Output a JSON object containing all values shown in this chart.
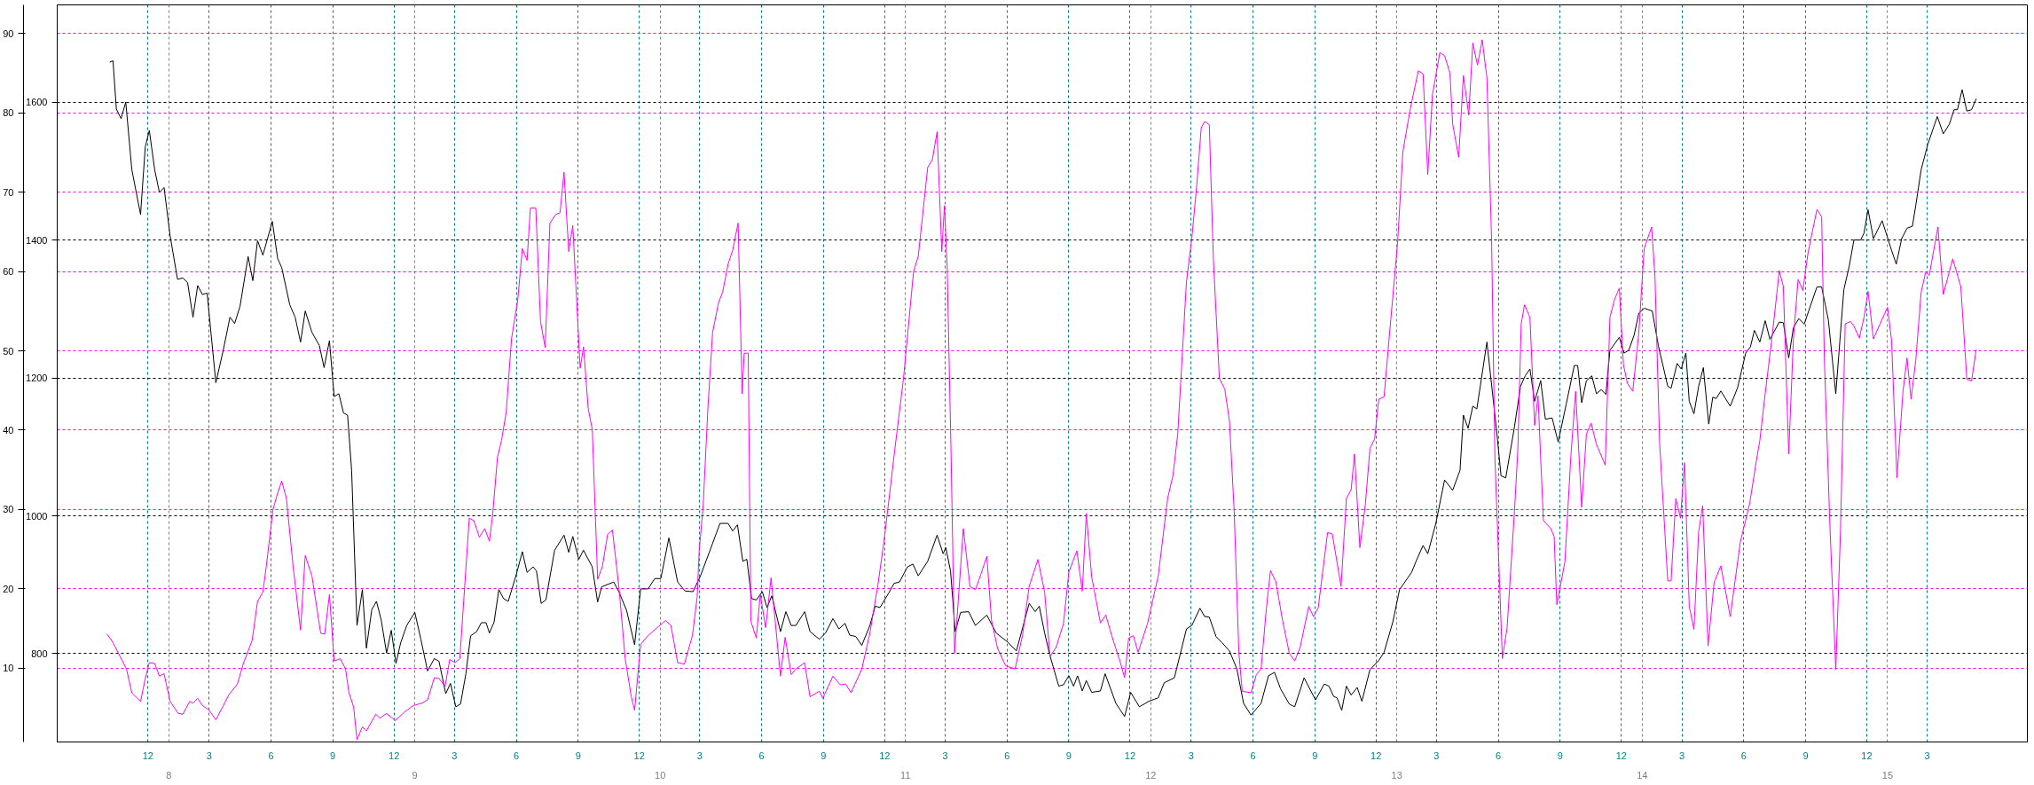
{
  "chart_data": {
    "type": "line",
    "xlim": [
      "2007-07-19",
      "2015-07-28"
    ],
    "xticks": [
      {
        "value": "2007-12-01",
        "label": "12"
      },
      {
        "value": "2008-03-01",
        "label": "3"
      },
      {
        "value": "2008-06-01",
        "label": "6"
      },
      {
        "value": "2008-09-01",
        "label": "9"
      },
      {
        "value": "2008-12-01",
        "label": "12"
      },
      {
        "value": "2009-03-01",
        "label": "3"
      },
      {
        "value": "2009-06-01",
        "label": "6"
      },
      {
        "value": "2009-09-01",
        "label": "9"
      },
      {
        "value": "2009-12-01",
        "label": "12"
      },
      {
        "value": "2010-03-01",
        "label": "3"
      },
      {
        "value": "2010-06-01",
        "label": "6"
      },
      {
        "value": "2010-09-01",
        "label": "9"
      },
      {
        "value": "2010-12-01",
        "label": "12"
      },
      {
        "value": "2011-03-01",
        "label": "3"
      },
      {
        "value": "2011-06-01",
        "label": "6"
      },
      {
        "value": "2011-09-01",
        "label": "9"
      },
      {
        "value": "2011-12-01",
        "label": "12"
      },
      {
        "value": "2012-03-01",
        "label": "3"
      },
      {
        "value": "2012-06-01",
        "label": "6"
      },
      {
        "value": "2012-09-01",
        "label": "9"
      },
      {
        "value": "2012-12-01",
        "label": "12"
      },
      {
        "value": "2013-03-01",
        "label": "3"
      },
      {
        "value": "2013-06-01",
        "label": "6"
      },
      {
        "value": "2013-09-01",
        "label": "9"
      },
      {
        "value": "2013-12-01",
        "label": "12"
      },
      {
        "value": "2014-03-01",
        "label": "3"
      },
      {
        "value": "2014-06-01",
        "label": "6"
      },
      {
        "value": "2014-09-01",
        "label": "9"
      },
      {
        "value": "2014-12-01",
        "label": "12"
      },
      {
        "value": "2015-03-01",
        "label": "3"
      }
    ],
    "x2lim": [
      "2007-07-19",
      "2015-07-28"
    ],
    "x2ticks": [
      {
        "value": "2008",
        "label": "8"
      },
      {
        "value": "2009",
        "label": "9"
      },
      {
        "value": "2010",
        "label": "10"
      },
      {
        "value": "2011",
        "label": "11"
      },
      {
        "value": "2012",
        "label": "12"
      },
      {
        "value": "2013",
        "label": "13"
      },
      {
        "value": "2014",
        "label": "14"
      },
      {
        "value": "2015",
        "label": "15"
      }
    ],
    "ylim": [
      672,
      1741
    ],
    "yticks": [
      800,
      1000,
      1200,
      1400,
      1600
    ],
    "y2lim": [
      0.7,
      93.6
    ],
    "y2ticks": [
      10,
      20,
      30,
      40,
      50,
      60,
      70,
      80,
      90
    ],
    "grid": true,
    "series": [
      {
        "color": "#000000",
        "x": [
          "2007-10-05",
          "2007-10-10",
          "2007-10-15",
          "2007-10-22",
          "2007-10-29",
          "2007-11-07",
          "2007-11-20",
          "2007-11-27",
          "2007-12-03",
          "2007-12-11",
          "2007-12-18",
          "2007-12-25",
          "2008-01-03",
          "2008-01-14",
          "2008-01-22",
          "2008-01-29",
          "2008-02-06",
          "2008-02-13",
          "2008-02-20",
          "2008-02-27",
          "2008-03-11",
          "2008-03-22",
          "2008-04-01",
          "2008-04-08",
          "2008-04-16",
          "2008-04-28",
          "2008-05-05",
          "2008-05-12",
          "2008-05-20",
          "2008-06-03",
          "2008-06-11",
          "2008-06-17",
          "2008-06-29",
          "2008-07-07",
          "2008-07-15",
          "2008-07-22",
          "2008-08-01",
          "2008-08-12",
          "2008-08-19",
          "2008-08-27",
          "2008-09-03",
          "2008-09-10",
          "2008-09-17",
          "2008-09-23",
          "2008-09-29",
          "2008-10-07",
          "2008-10-15",
          "2008-10-21",
          "2008-10-29",
          "2008-11-05",
          "2008-11-12",
          "2008-11-20",
          "2008-11-27",
          "2008-12-04",
          "2008-12-11",
          "2008-12-20",
          "2009-01-01",
          "2009-01-10",
          "2009-01-20",
          "2009-01-30",
          "2009-02-06",
          "2009-02-16",
          "2009-02-23",
          "2009-03-03",
          "2009-03-10",
          "2009-03-18",
          "2009-03-25",
          "2009-04-03",
          "2009-04-10",
          "2009-04-17",
          "2009-04-22",
          "2009-04-29",
          "2009-05-06",
          "2009-05-13",
          "2009-05-20",
          "2009-06-01",
          "2009-06-10",
          "2009-06-17",
          "2009-06-26",
          "2009-07-01",
          "2009-07-08",
          "2009-07-15",
          "2009-07-28",
          "2009-08-11",
          "2009-08-18",
          "2009-08-24",
          "2009-09-02",
          "2009-09-09",
          "2009-09-22",
          "2009-09-30",
          "2009-10-06",
          "2009-10-24",
          "2009-11-01",
          "2009-11-12",
          "2009-11-24",
          "2009-12-03",
          "2009-12-14",
          "2009-12-24",
          "2010-01-02",
          "2010-01-14",
          "2010-01-27",
          "2010-02-07",
          "2010-02-19",
          "2010-03-02",
          "2010-03-17",
          "2010-03-31",
          "2010-04-12",
          "2010-04-19",
          "2010-04-26",
          "2010-05-04",
          "2010-05-10",
          "2010-05-17",
          "2010-05-24",
          "2010-06-02",
          "2010-06-09",
          "2010-06-16",
          "2010-06-29",
          "2010-07-07",
          "2010-07-15",
          "2010-07-22",
          "2010-08-04",
          "2010-08-12",
          "2010-08-26",
          "2010-09-04",
          "2010-09-15",
          "2010-09-24",
          "2010-10-03",
          "2010-10-10",
          "2010-10-19",
          "2010-10-28",
          "2010-11-09",
          "2010-11-17",
          "2010-11-24",
          "2010-12-07",
          "2010-12-15",
          "2010-12-23",
          "2011-01-04",
          "2011-01-12",
          "2011-01-20",
          "2011-02-03",
          "2011-02-17",
          "2011-02-26",
          "2011-03-02",
          "2011-03-09",
          "2011-03-16",
          "2011-03-24",
          "2011-04-05",
          "2011-04-15",
          "2011-05-02",
          "2011-05-16",
          "2011-06-02",
          "2011-06-15",
          "2011-07-04",
          "2011-07-13",
          "2011-07-19",
          "2011-07-27",
          "2011-08-04",
          "2011-08-17",
          "2011-08-24",
          "2011-09-01",
          "2011-09-08",
          "2011-09-14",
          "2011-09-21",
          "2011-09-27",
          "2011-10-05",
          "2011-10-18",
          "2011-10-25",
          "2011-11-10",
          "2011-11-23",
          "2011-12-02",
          "2011-12-15",
          "2011-12-29",
          "2012-01-12",
          "2012-01-21",
          "2012-02-05",
          "2012-02-23",
          "2012-03-02",
          "2012-03-14",
          "2012-03-21",
          "2012-03-28",
          "2012-04-07",
          "2012-04-16",
          "2012-04-27",
          "2012-05-08",
          "2012-05-18",
          "2012-05-29",
          "2012-06-13",
          "2012-06-24",
          "2012-07-03",
          "2012-07-12",
          "2012-07-25",
          "2012-08-02",
          "2012-08-16",
          "2012-09-02",
          "2012-09-15",
          "2012-09-22",
          "2012-09-29",
          "2012-10-04",
          "2012-10-11",
          "2012-10-18",
          "2012-10-25",
          "2012-11-03",
          "2012-11-10",
          "2012-11-22",
          "2012-12-05",
          "2012-12-13",
          "2012-12-26",
          "2013-01-05",
          "2013-01-23",
          "2013-01-30",
          "2013-02-09",
          "2013-02-16",
          "2013-02-28",
          "2013-03-13",
          "2013-03-25",
          "2013-04-05",
          "2013-04-10",
          "2013-04-17",
          "2013-04-24",
          "2013-04-30",
          "2013-05-15",
          "2013-05-30",
          "2013-06-05",
          "2013-06-12",
          "2013-06-25",
          "2013-07-04",
          "2013-07-11",
          "2013-07-18",
          "2013-07-25",
          "2013-08-03",
          "2013-08-10",
          "2013-08-20",
          "2013-08-29",
          "2013-09-10",
          "2013-09-22",
          "2013-09-27",
          "2013-10-03",
          "2013-10-10",
          "2013-10-18",
          "2013-10-25",
          "2013-11-01",
          "2013-11-08",
          "2013-11-14",
          "2013-11-28",
          "2013-12-05",
          "2013-12-12",
          "2013-12-20",
          "2013-12-27",
          "2014-01-04",
          "2014-01-16",
          "2014-01-25",
          "2014-02-08",
          "2014-02-13",
          "2014-02-22",
          "2014-02-28",
          "2014-03-07",
          "2014-03-12",
          "2014-03-19",
          "2014-03-26",
          "2014-04-02",
          "2014-04-10",
          "2014-04-16",
          "2014-04-21",
          "2014-04-28",
          "2014-05-12",
          "2014-05-23",
          "2014-06-04",
          "2014-06-11",
          "2014-06-17",
          "2014-06-25",
          "2014-07-03",
          "2014-07-10",
          "2014-07-24",
          "2014-07-30",
          "2014-08-07",
          "2014-08-14",
          "2014-08-22",
          "2014-08-30",
          "2014-09-18",
          "2014-09-25",
          "2014-10-05",
          "2014-10-16",
          "2014-10-28",
          "2014-11-05",
          "2014-11-12",
          "2014-11-22",
          "2014-11-27",
          "2014-12-03",
          "2014-12-11",
          "2014-12-24",
          "2015-01-07",
          "2015-01-14",
          "2015-01-22",
          "2015-01-30",
          "2015-02-07",
          "2015-02-12",
          "2015-02-20",
          "2015-03-02",
          "2015-03-16",
          "2015-03-25",
          "2015-04-03",
          "2015-04-10",
          "2015-04-15",
          "2015-04-22",
          "2015-04-29",
          "2015-05-06",
          "2015-05-13"
        ],
        "values": [
          1658,
          1660,
          1590,
          1576,
          1600,
          1502,
          1437,
          1535,
          1559,
          1502,
          1469,
          1476,
          1406,
          1343,
          1345,
          1338,
          1288,
          1334,
          1321,
          1323,
          1193,
          1240,
          1288,
          1279,
          1304,
          1376,
          1341,
          1399,
          1378,
          1427,
          1373,
          1360,
          1306,
          1288,
          1252,
          1297,
          1266,
          1247,
          1215,
          1254,
          1173,
          1177,
          1149,
          1146,
          1066,
          841,
          893,
          808,
          864,
          876,
          849,
          801,
          834,
          786,
          816,
          841,
          860,
          821,
          775,
          793,
          789,
          742,
          757,
          723,
          727,
          771,
          826,
          832,
          845,
          845,
          830,
          846,
          893,
          880,
          876,
          915,
          948,
          918,
          926,
          920,
          873,
          878,
          950,
          972,
          947,
          970,
          937,
          950,
          926,
          875,
          897,
          904,
          889,
          863,
          813,
          894,
          894,
          909,
          909,
          968,
          904,
          891,
          890,
          913,
          952,
          989,
          989,
          978,
          987,
          934,
          937,
          880,
          878,
          890,
          867,
          884,
          832,
          861,
          841,
          841,
          861,
          832,
          821,
          830,
          851,
          836,
          844,
          827,
          825,
          812,
          841,
          869,
          867,
          888,
          902,
          904,
          926,
          930,
          913,
          934,
          972,
          945,
          954,
          920,
          832,
          860,
          861,
          841,
          856,
          830,
          817,
          804,
          873,
          861,
          869,
          830,
          797,
          753,
          755,
          768,
          753,
          768,
          746,
          761,
          744,
          746,
          771,
          728,
          709,
          744,
          723,
          731,
          736,
          758,
          765,
          836,
          841,
          866,
          854,
          853,
          825,
          816,
          804,
          778,
          728,
          711,
          728,
          768,
          773,
          749,
          727,
          723,
          765,
          733,
          756,
          753,
          738,
          736,
          718,
          753,
          740,
          751,
          731,
          777,
          790,
          802,
          846,
          893,
          918,
          935,
          957,
          945,
          989,
          1052,
          1037,
          1066,
          1146,
          1127,
          1159,
          1155,
          1252,
          1118,
          1058,
          1055,
          1129,
          1188,
          1203,
          1213,
          1166,
          1196,
          1140,
          1142,
          1107,
          1162,
          1218,
          1218,
          1164,
          1196,
          1203,
          1177,
          1183,
          1176,
          1240,
          1259,
          1236,
          1240,
          1262,
          1294,
          1301,
          1297,
          1247,
          1188,
          1185,
          1221,
          1213,
          1236,
          1166,
          1148,
          1188,
          1215,
          1133,
          1172,
          1170,
          1181,
          1159,
          1186,
          1236,
          1245,
          1269,
          1252,
          1283,
          1256,
          1281,
          1280,
          1229,
          1273,
          1286,
          1278,
          1332,
          1332,
          1284,
          1177,
          1328,
          1362,
          1400,
          1400,
          1410,
          1444,
          1402,
          1428,
          1385,
          1365,
          1402,
          1417,
          1420,
          1450,
          1502,
          1539,
          1579,
          1554,
          1568,
          1589,
          1589,
          1618,
          1587,
          1589,
          1605
        ]
      },
      {
        "color": "#ff00ff",
        "axis": "y2",
        "x": [
          "2007-10-01",
          "2007-10-08",
          "2007-10-18",
          "2007-10-30",
          "2007-11-07",
          "2007-11-20",
          "2007-11-27",
          "2007-12-03",
          "2007-12-11",
          "2007-12-18",
          "2007-12-25",
          "2008-01-03",
          "2008-01-15",
          "2008-01-22",
          "2008-02-01",
          "2008-02-06",
          "2008-02-13",
          "2008-02-20",
          "2008-03-01",
          "2008-03-11",
          "2008-03-21",
          "2008-03-30",
          "2008-04-12",
          "2008-04-21",
          "2008-05-04",
          "2008-05-12",
          "2008-05-20",
          "2008-05-25",
          "2008-06-04",
          "2008-06-10",
          "2008-06-17",
          "2008-06-24",
          "2008-07-04",
          "2008-07-15",
          "2008-07-22",
          "2008-08-01",
          "2008-08-14",
          "2008-08-20",
          "2008-08-27",
          "2008-09-03",
          "2008-09-12",
          "2008-09-20",
          "2008-09-25",
          "2008-10-02",
          "2008-10-07",
          "2008-10-15",
          "2008-10-21",
          "2008-11-04",
          "2008-11-10",
          "2008-11-20",
          "2008-12-03",
          "2008-12-17",
          "2008-12-30",
          "2009-01-12",
          "2009-01-20",
          "2009-01-30",
          "2009-02-06",
          "2009-02-15",
          "2009-02-22",
          "2009-03-02",
          "2009-03-09",
          "2009-03-23",
          "2009-03-30",
          "2009-04-07",
          "2009-04-15",
          "2009-04-22",
          "2009-04-27",
          "2009-05-04",
          "2009-05-10",
          "2009-05-17",
          "2009-05-25",
          "2009-06-03",
          "2009-06-10",
          "2009-06-17",
          "2009-06-22",
          "2009-06-30",
          "2009-07-07",
          "2009-07-14",
          "2009-07-21",
          "2009-07-30",
          "2009-08-05",
          "2009-08-11",
          "2009-08-18",
          "2009-08-24",
          "2009-09-04",
          "2009-09-09",
          "2009-09-16",
          "2009-09-22",
          "2009-09-30",
          "2009-10-07",
          "2009-10-15",
          "2009-10-22",
          "2009-11-01",
          "2009-11-10",
          "2009-11-19",
          "2009-11-24",
          "2009-12-03",
          "2009-12-14",
          "2009-12-26",
          "2010-01-09",
          "2010-01-17",
          "2010-01-27",
          "2010-02-06",
          "2010-02-18",
          "2010-02-25",
          "2010-02-28",
          "2010-03-06",
          "2010-03-13",
          "2010-03-20",
          "2010-03-29",
          "2010-04-04",
          "2010-04-12",
          "2010-04-19",
          "2010-04-27",
          "2010-05-03",
          "2010-05-06",
          "2010-05-12",
          "2010-05-16",
          "2010-05-24",
          "2010-05-30",
          "2010-06-07",
          "2010-06-15",
          "2010-06-29",
          "2010-07-06",
          "2010-07-15",
          "2010-07-22",
          "2010-08-04",
          "2010-08-12",
          "2010-08-26",
          "2010-08-31",
          "2010-09-15",
          "2010-09-26",
          "2010-10-04",
          "2010-10-12",
          "2010-10-28",
          "2010-11-09",
          "2010-11-21",
          "2010-11-30",
          "2010-12-09",
          "2010-12-16",
          "2010-12-29",
          "2011-01-13",
          "2011-01-20",
          "2011-02-03",
          "2011-02-10",
          "2011-02-17",
          "2011-02-24",
          "2011-02-28",
          "2011-03-04",
          "2011-03-10",
          "2011-03-15",
          "2011-03-28",
          "2011-04-07",
          "2011-04-15",
          "2011-04-23",
          "2011-05-02",
          "2011-05-09",
          "2011-05-18",
          "2011-05-30",
          "2011-06-13",
          "2011-06-24",
          "2011-07-04",
          "2011-07-17",
          "2011-07-27",
          "2011-08-04",
          "2011-08-13",
          "2011-08-24",
          "2011-09-01",
          "2011-09-13",
          "2011-09-21",
          "2011-09-27",
          "2011-10-05",
          "2011-10-18",
          "2011-10-26",
          "2011-11-06",
          "2011-11-16",
          "2011-11-23",
          "2011-11-29",
          "2011-12-06",
          "2011-12-13",
          "2011-12-27",
          "2012-01-12",
          "2012-01-26",
          "2012-02-03",
          "2012-02-10",
          "2012-02-23",
          "2012-03-02",
          "2012-03-09",
          "2012-03-16",
          "2012-03-21",
          "2012-03-28",
          "2012-04-03",
          "2012-04-12",
          "2012-04-20",
          "2012-04-27",
          "2012-05-04",
          "2012-05-11",
          "2012-05-16",
          "2012-05-29",
          "2012-06-06",
          "2012-06-13",
          "2012-06-21",
          "2012-06-27",
          "2012-07-05",
          "2012-07-15",
          "2012-07-25",
          "2012-08-02",
          "2012-08-10",
          "2012-08-23",
          "2012-08-30",
          "2012-09-06",
          "2012-09-20",
          "2012-09-27",
          "2012-10-10",
          "2012-10-18",
          "2012-10-25",
          "2012-10-30",
          "2012-11-07",
          "2012-11-15",
          "2012-11-22",
          "2012-11-29",
          "2012-12-05",
          "2012-12-13",
          "2012-12-20",
          "2013-01-02",
          "2013-01-10",
          "2013-01-21",
          "2013-02-02",
          "2013-02-09",
          "2013-02-16",
          "2013-02-23",
          "2013-02-28",
          "2013-03-06",
          "2013-03-13",
          "2013-03-21",
          "2013-03-25",
          "2013-04-03",
          "2013-04-10",
          "2013-04-18",
          "2013-04-24",
          "2013-05-01",
          "2013-05-08",
          "2013-05-15",
          "2013-05-22",
          "2013-05-27",
          "2013-06-07",
          "2013-06-14",
          "2013-06-25",
          "2013-06-30",
          "2013-07-05",
          "2013-07-10",
          "2013-07-18",
          "2013-07-25",
          "2013-07-30",
          "2013-08-07",
          "2013-08-18",
          "2013-08-23",
          "2013-08-27",
          "2013-09-08",
          "2013-09-17",
          "2013-09-24",
          "2013-10-03",
          "2013-10-10",
          "2013-10-17",
          "2013-10-25",
          "2013-11-07",
          "2013-11-14",
          "2013-11-21",
          "2013-11-28",
          "2013-12-04",
          "2013-12-10",
          "2013-12-18",
          "2013-12-27",
          "2014-01-04",
          "2014-01-15",
          "2014-01-20",
          "2014-01-27",
          "2014-02-08",
          "2014-02-13",
          "2014-02-20",
          "2014-02-27",
          "2014-03-05",
          "2014-03-12",
          "2014-03-19",
          "2014-03-26",
          "2014-04-01",
          "2014-04-09",
          "2014-04-18",
          "2014-04-28",
          "2014-05-12",
          "2014-05-27",
          "2014-06-10",
          "2014-06-20",
          "2014-06-25",
          "2014-07-03",
          "2014-07-13",
          "2014-07-24",
          "2014-07-30",
          "2014-08-07",
          "2014-08-14",
          "2014-08-21",
          "2014-08-28",
          "2014-09-05",
          "2014-09-18",
          "2014-09-25",
          "2014-09-29",
          "2014-10-07",
          "2014-10-16",
          "2014-10-23",
          "2014-10-30",
          "2014-11-07",
          "2014-11-12",
          "2014-11-20",
          "2014-11-27",
          "2014-12-03",
          "2014-12-11",
          "2015-01-01",
          "2015-01-07",
          "2015-01-15",
          "2015-01-24",
          "2015-01-30",
          "2015-02-05",
          "2015-02-12",
          "2015-02-20",
          "2015-02-27",
          "2015-03-04",
          "2015-03-17",
          "2015-03-25",
          "2015-04-08",
          "2015-04-20",
          "2015-04-29",
          "2015-05-06",
          "2015-05-13"
        ],
        "values": [
          14.3,
          13.5,
          11.9,
          9.9,
          6.9,
          5.8,
          8.7,
          10.7,
          10.6,
          9.0,
          9.3,
          5.8,
          4.3,
          4.2,
          5.8,
          5.6,
          6.2,
          5.3,
          4.7,
          3.5,
          5.1,
          6.6,
          8.0,
          10.6,
          13.5,
          18.4,
          19.6,
          22.8,
          30.0,
          31.8,
          33.6,
          31.4,
          22.8,
          14.8,
          24.2,
          21.6,
          14.4,
          14.3,
          19.3,
          10.9,
          11.2,
          9.9,
          6.9,
          5.1,
          1.0,
          2.6,
          2.1,
          4.2,
          3.7,
          4.3,
          3.4,
          4.5,
          5.3,
          5.6,
          6.0,
          8.8,
          8.7,
          7.7,
          11.1,
          10.7,
          11.2,
          28.9,
          28.6,
          26.5,
          27.6,
          26.0,
          29.5,
          36.6,
          38.7,
          42.3,
          51.6,
          56.3,
          62.9,
          61.4,
          68.0,
          68.0,
          53.7,
          50.4,
          66.1,
          67.2,
          67.4,
          72.5,
          62.5,
          65.8,
          47.8,
          50.5,
          42.7,
          40.1,
          21.2,
          22.8,
          26.9,
          27.4,
          19.9,
          11.2,
          6.4,
          4.7,
          13.0,
          14.1,
          15.0,
          16.0,
          15.4,
          10.7,
          10.5,
          14.1,
          18.9,
          24.7,
          30.5,
          42.7,
          52.3,
          56.1,
          57.4,
          60.9,
          62.7,
          66.1,
          44.6,
          49.7,
          49.7,
          15.9,
          13.8,
          19.3,
          15.1,
          21.4,
          9.0,
          13.9,
          9.2,
          9.9,
          10.7,
          6.4,
          7.1,
          6.2,
          9.0,
          7.9,
          8.0,
          6.9,
          9.9,
          14.4,
          20.5,
          26.0,
          32.4,
          37.5,
          46.5,
          60.0,
          61.9,
          73.1,
          74.1,
          77.6,
          62.5,
          68.3,
          60.6,
          36.2,
          11.9,
          27.6,
          20.3,
          19.9,
          21.8,
          24.1,
          16.0,
          12.5,
          10.3,
          9.9,
          14.1,
          20.3,
          23.7,
          19.6,
          11.5,
          12.6,
          15.6,
          22.1,
          24.8,
          19.7,
          29.5,
          21.5,
          15.7,
          16.7,
          13.5,
          10.9,
          8.8,
          13.8,
          14.1,
          12.0,
          15.6,
          21.6,
          31.4,
          34.3,
          39.5,
          58.7,
          64.2,
          70.6,
          78.1,
          78.9,
          78.5,
          61.6,
          46.5,
          45.2,
          41.1,
          29.8,
          11.9,
          7.1,
          6.9,
          9.2,
          9.9,
          17.6,
          22.3,
          20.9,
          16.0,
          11.9,
          10.9,
          12.6,
          17.8,
          16.5,
          17.6,
          27.1,
          26.9,
          20.3,
          31.4,
          32.5,
          37.0,
          25.2,
          30.5,
          37.7,
          38.9,
          43.9,
          44.2,
          51.1,
          63.5,
          75.1,
          80.5,
          85.3,
          84.9,
          72.2,
          82.3,
          84.7,
          87.6,
          87.2,
          85.0,
          78.6,
          74.4,
          84.7,
          79.7,
          88.8,
          86.0,
          89.2,
          84.4,
          63.8,
          36.2,
          11.2,
          15.1,
          29.8,
          37.5,
          53.4,
          55.8,
          54.2,
          40.6,
          44.3,
          28.6,
          27.6,
          26.6,
          18.0,
          23.4,
          36.9,
          44.9,
          30.3,
          39.5,
          40.9,
          38.2,
          35.6,
          54.2,
          56.5,
          57.9,
          48.3,
          45.9,
          44.9,
          52.3,
          62.9,
          65.6,
          59.4,
          38.3,
          21.0,
          21.0,
          31.4,
          28.9,
          35.9,
          17.8,
          14.9,
          27.2,
          30.5,
          12.8,
          20.8,
          22.9,
          16.5,
          25.9,
          30.8,
          36.2,
          38.7,
          44.6,
          51.6,
          60.1,
          58.1,
          37.0,
          51.6,
          59.0,
          57.6,
          62.5,
          67.8,
          66.9,
          49.1,
          28.6,
          9.8,
          27.2,
          53.4,
          53.7,
          53.1,
          51.6,
          54.2,
          57.5,
          51.5,
          55.5,
          51.3,
          34.0,
          44.9,
          49.1,
          43.9,
          48.8,
          57.4,
          60.0,
          59.5,
          65.6,
          57.1,
          61.6,
          58.1,
          46.4,
          46.2,
          50.2
        ]
      }
    ]
  }
}
